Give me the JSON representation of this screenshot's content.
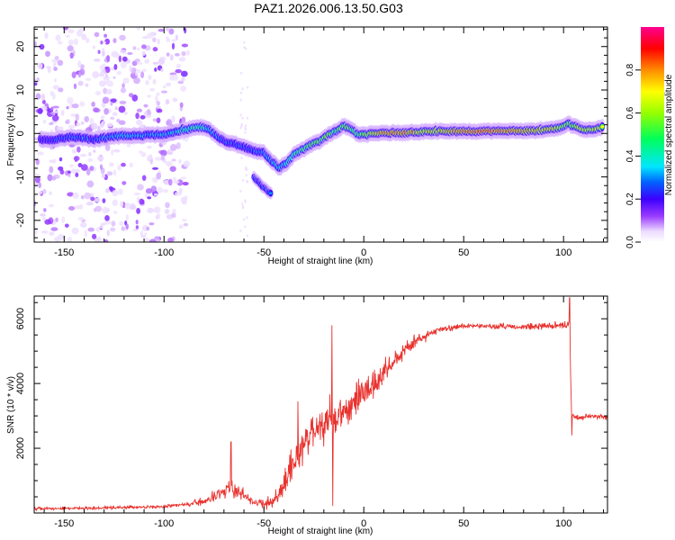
{
  "title": "PAZ1.2026.006.13.50.G03",
  "colors": {
    "snr_line": "#e8322e"
  },
  "chart_data": [
    {
      "type": "heatmap",
      "name": "spectrogram",
      "xlabel": "Height of straight line (km)",
      "ylabel": "Frequency (Hz)",
      "xlim": [
        -165,
        122
      ],
      "ylim": [
        -25,
        24.5
      ],
      "xticks": [
        -150,
        -100,
        -50,
        0,
        50,
        100
      ],
      "xtick_labels": [
        "-150",
        "-100",
        "-50",
        "0",
        "50",
        "100"
      ],
      "yticks": [
        -20,
        -10,
        0,
        10,
        20
      ],
      "ytick_labels": [
        "-20",
        "-10",
        "0",
        "10",
        "20"
      ],
      "colorbar": {
        "label": "Normalized spectral amplitude",
        "range": [
          0,
          1
        ],
        "ticks": [
          0.0,
          0.2,
          0.4,
          0.6,
          0.8
        ],
        "tick_labels": [
          "0.0",
          "0.2",
          "0.4",
          "0.6",
          "0.8"
        ]
      },
      "ridge": [
        {
          "x": -162,
          "f": -1.5,
          "a": 0.22
        },
        {
          "x": -157,
          "f": -1.6,
          "a": 0.25
        },
        {
          "x": -152,
          "f": -1.2,
          "a": 0.3
        },
        {
          "x": -147,
          "f": -0.8,
          "a": 0.28
        },
        {
          "x": -140,
          "f": -1.0,
          "a": 0.3
        },
        {
          "x": -135,
          "f": -1.5,
          "a": 0.26
        },
        {
          "x": -128,
          "f": -0.8,
          "a": 0.33
        },
        {
          "x": -122,
          "f": -0.6,
          "a": 0.35
        },
        {
          "x": -115,
          "f": -0.5,
          "a": 0.38
        },
        {
          "x": -108,
          "f": -0.4,
          "a": 0.33
        },
        {
          "x": -100,
          "f": -0.3,
          "a": 0.36
        },
        {
          "x": -95,
          "f": 0.3,
          "a": 0.38
        },
        {
          "x": -90,
          "f": 0.9,
          "a": 0.45
        },
        {
          "x": -85,
          "f": 1.2,
          "a": 0.5
        },
        {
          "x": -81,
          "f": 1.4,
          "a": 0.45
        },
        {
          "x": -77,
          "f": 0.8,
          "a": 0.38
        },
        {
          "x": -73,
          "f": -0.8,
          "a": 0.32
        },
        {
          "x": -69,
          "f": -2.0,
          "a": 0.3
        },
        {
          "x": -64,
          "f": -2.5,
          "a": 0.3
        },
        {
          "x": -59,
          "f": -3.3,
          "a": 0.28
        },
        {
          "x": -55,
          "f": -4.0,
          "a": 0.3
        },
        {
          "x": -50,
          "f": -4.5,
          "a": 0.32
        },
        {
          "x": -46,
          "f": -6.5,
          "a": 0.35
        },
        {
          "x": -42,
          "f": -8.0,
          "a": 0.4
        },
        {
          "x": -38,
          "f": -6.5,
          "a": 0.45
        },
        {
          "x": -34,
          "f": -4.5,
          "a": 0.5
        },
        {
          "x": -30,
          "f": -3.5,
          "a": 0.55
        },
        {
          "x": -26,
          "f": -2.5,
          "a": 0.6
        },
        {
          "x": -22,
          "f": -1.8,
          "a": 0.6
        },
        {
          "x": -18,
          "f": -0.5,
          "a": 0.6
        },
        {
          "x": -14,
          "f": 0.5,
          "a": 0.55
        },
        {
          "x": -10,
          "f": 1.8,
          "a": 0.6
        },
        {
          "x": -6,
          "f": 0.9,
          "a": 0.55
        },
        {
          "x": -2,
          "f": -0.4,
          "a": 0.55
        },
        {
          "x": 2,
          "f": 0.0,
          "a": 0.65
        },
        {
          "x": 8,
          "f": 0.1,
          "a": 0.8
        },
        {
          "x": 15,
          "f": 0.1,
          "a": 0.85
        },
        {
          "x": 22,
          "f": 0.2,
          "a": 0.8
        },
        {
          "x": 30,
          "f": 0.4,
          "a": 0.7
        },
        {
          "x": 40,
          "f": 0.5,
          "a": 0.75
        },
        {
          "x": 50,
          "f": 0.5,
          "a": 0.85
        },
        {
          "x": 60,
          "f": 0.5,
          "a": 0.88
        },
        {
          "x": 70,
          "f": 0.6,
          "a": 0.85
        },
        {
          "x": 80,
          "f": 0.6,
          "a": 0.8
        },
        {
          "x": 90,
          "f": 0.8,
          "a": 0.75
        },
        {
          "x": 97,
          "f": 1.2,
          "a": 0.7
        },
        {
          "x": 103,
          "f": 2.2,
          "a": 0.6
        },
        {
          "x": 108,
          "f": 1.2,
          "a": 0.7
        },
        {
          "x": 114,
          "f": 0.8,
          "a": 0.72
        },
        {
          "x": 120,
          "f": 1.5,
          "a": 0.7
        }
      ],
      "branch": [
        {
          "x": -55,
          "f": -10.0,
          "a": 0.3
        },
        {
          "x": -52,
          "f": -11.5,
          "a": 0.3
        },
        {
          "x": -49,
          "f": -12.8,
          "a": 0.3
        },
        {
          "x": -46,
          "f": -14.0,
          "a": 0.28
        }
      ]
    },
    {
      "type": "line",
      "name": "snr",
      "xlabel": "Height of straight line (km)",
      "ylabel": "SNR (10 * v/v)",
      "xlim": [
        -165,
        122
      ],
      "ylim": [
        0,
        6700
      ],
      "xticks": [
        -150,
        -100,
        -50,
        0,
        50,
        100
      ],
      "xtick_labels": [
        "-150",
        "-100",
        "-50",
        "0",
        "50",
        "100"
      ],
      "yticks": [
        2000,
        4000,
        6000
      ],
      "ytick_labels": [
        "2000",
        "4000",
        "6000"
      ],
      "trend": [
        {
          "x": -165,
          "y": 130
        },
        {
          "x": -130,
          "y": 160
        },
        {
          "x": -100,
          "y": 200
        },
        {
          "x": -90,
          "y": 260
        },
        {
          "x": -80,
          "y": 380
        },
        {
          "x": -72,
          "y": 550
        },
        {
          "x": -66,
          "y": 780
        },
        {
          "x": -62,
          "y": 620
        },
        {
          "x": -55,
          "y": 320
        },
        {
          "x": -50,
          "y": 260
        },
        {
          "x": -45,
          "y": 380
        },
        {
          "x": -40,
          "y": 800
        },
        {
          "x": -36,
          "y": 1500
        },
        {
          "x": -30,
          "y": 2200
        },
        {
          "x": -25,
          "y": 2500
        },
        {
          "x": -18,
          "y": 2800
        },
        {
          "x": -12,
          "y": 3000
        },
        {
          "x": -5,
          "y": 3400
        },
        {
          "x": 0,
          "y": 3750
        },
        {
          "x": 5,
          "y": 4000
        },
        {
          "x": 10,
          "y": 4300
        },
        {
          "x": 15,
          "y": 4700
        },
        {
          "x": 20,
          "y": 5000
        },
        {
          "x": 25,
          "y": 5250
        },
        {
          "x": 30,
          "y": 5450
        },
        {
          "x": 35,
          "y": 5600
        },
        {
          "x": 40,
          "y": 5700
        },
        {
          "x": 50,
          "y": 5780
        },
        {
          "x": 60,
          "y": 5780
        },
        {
          "x": 70,
          "y": 5760
        },
        {
          "x": 80,
          "y": 5750
        },
        {
          "x": 90,
          "y": 5780
        },
        {
          "x": 101,
          "y": 5800
        },
        {
          "x": 103,
          "y": 5850
        },
        {
          "x": 104,
          "y": 3000
        },
        {
          "x": 108,
          "y": 2950
        },
        {
          "x": 115,
          "y": 3000
        },
        {
          "x": 122,
          "y": 2950
        }
      ],
      "noise": [
        {
          "x": -165,
          "a": 60
        },
        {
          "x": -90,
          "a": 80
        },
        {
          "x": -80,
          "a": 160
        },
        {
          "x": -65,
          "a": 400
        },
        {
          "x": -55,
          "a": 150
        },
        {
          "x": -45,
          "a": 300
        },
        {
          "x": -35,
          "a": 800
        },
        {
          "x": -15,
          "a": 800
        },
        {
          "x": 0,
          "a": 700
        },
        {
          "x": 15,
          "a": 400
        },
        {
          "x": 30,
          "a": 200
        },
        {
          "x": 40,
          "a": 120
        },
        {
          "x": 70,
          "a": 110
        },
        {
          "x": 100,
          "a": 170
        },
        {
          "x": 104,
          "a": 120
        },
        {
          "x": 122,
          "a": 110
        }
      ],
      "spikes": [
        {
          "x": -66.5,
          "y": 2200
        },
        {
          "x": -33,
          "y": 3450
        },
        {
          "x": -16,
          "y": 5800
        },
        {
          "x": -15.5,
          "y": 220
        },
        {
          "x": 103,
          "y": 6650
        },
        {
          "x": 104.2,
          "y": 2400
        }
      ]
    }
  ]
}
